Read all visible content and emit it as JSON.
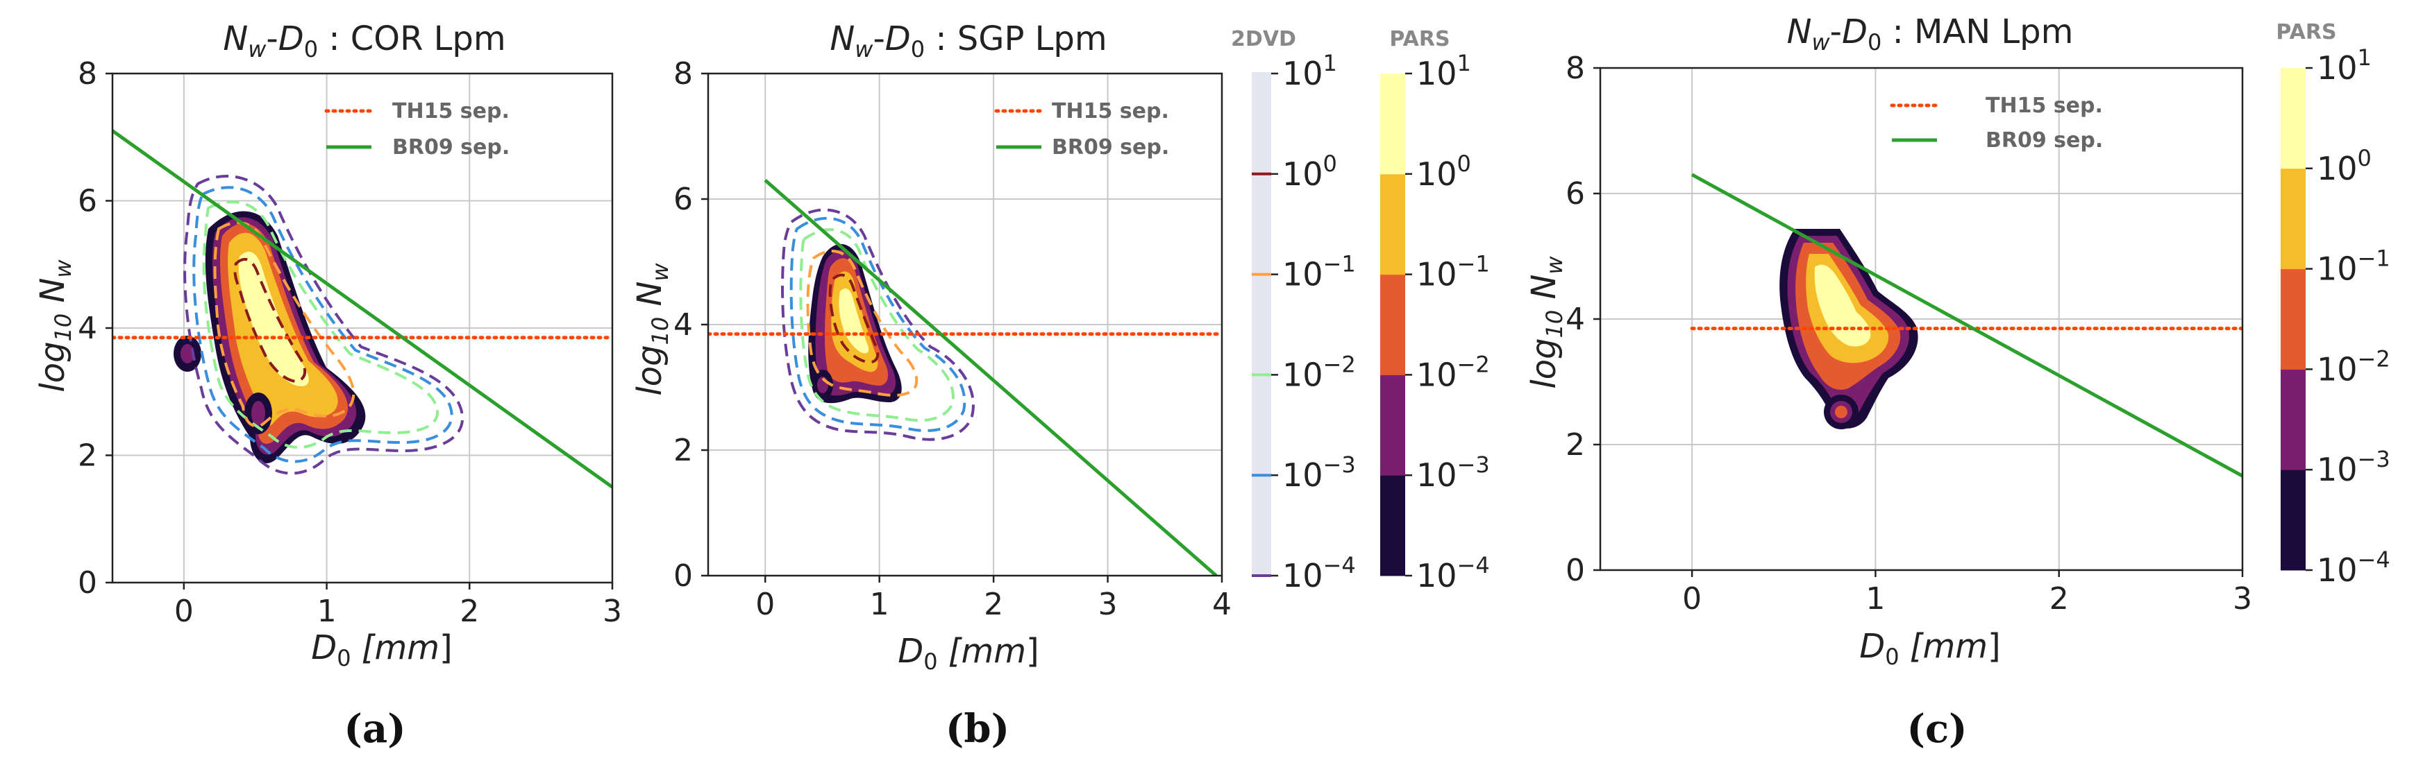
{
  "chart_data": [
    {
      "type": "contour",
      "panel_label": "(a)",
      "title_math": "Nw-D0",
      "title_suffix": "COR Lpm",
      "xlabel": "D0 [mm]",
      "ylabel": "log10 Nw",
      "xlim": [
        -0.5,
        3
      ],
      "ylim": [
        0,
        8
      ],
      "xticks": [
        0,
        1,
        2,
        3
      ],
      "yticks": [
        0,
        2,
        4,
        6,
        8
      ],
      "grid": true,
      "legend_position": "top-right",
      "lines": [
        {
          "name": "TH15 sep.",
          "color": "#ff4500",
          "style": "dotted",
          "x": [
            -0.5,
            3
          ],
          "y": [
            3.85,
            3.85
          ]
        },
        {
          "name": "BR09 sep.",
          "color": "#2ca02c",
          "style": "solid",
          "x": [
            -0.5,
            3
          ],
          "y": [
            7.1,
            1.5
          ]
        }
      ],
      "pars_contours": true,
      "dvd_contours": true
    },
    {
      "type": "contour",
      "panel_label": "(b)",
      "title_math": "Nw-D0",
      "title_suffix": "SGP Lpm",
      "xlabel": "D0 [mm]",
      "ylabel": "log10 Nw",
      "xlim": [
        -0.5,
        4
      ],
      "ylim": [
        0,
        8
      ],
      "xticks": [
        0,
        1,
        2,
        3,
        4
      ],
      "yticks": [
        0,
        2,
        4,
        6,
        8
      ],
      "grid": true,
      "legend_position": "top-right",
      "lines": [
        {
          "name": "TH15 sep.",
          "color": "#ff4500",
          "style": "dotted",
          "x": [
            -0.5,
            4
          ],
          "y": [
            3.85,
            3.85
          ]
        },
        {
          "name": "BR09 sep.",
          "color": "#2ca02c",
          "style": "solid",
          "x": [
            0,
            3.95
          ],
          "y": [
            6.3,
            0
          ]
        }
      ],
      "pars_contours": true,
      "dvd_contours": true
    },
    {
      "type": "contour",
      "panel_label": "(c)",
      "title_math": "Nw-D0",
      "title_suffix": "MAN Lpm",
      "xlabel": "D0 [mm]",
      "ylabel": "log10 Nw",
      "xlim": [
        -0.5,
        3
      ],
      "ylim": [
        0,
        8
      ],
      "xticks": [
        0,
        1,
        2,
        3
      ],
      "yticks": [
        0,
        2,
        4,
        6,
        8
      ],
      "grid": true,
      "legend_position": "top-right",
      "lines": [
        {
          "name": "TH15 sep.",
          "color": "#ff4500",
          "style": "dotted",
          "x": [
            0,
            3
          ],
          "y": [
            3.85,
            3.85
          ]
        },
        {
          "name": "BR09 sep.",
          "color": "#2ca02c",
          "style": "solid",
          "x": [
            0,
            3
          ],
          "y": [
            6.3,
            1.5
          ]
        }
      ],
      "pars_contours": true,
      "dvd_contours": false
    }
  ],
  "colorbars": {
    "dvd": {
      "title": "2DVD",
      "levels": [
        "10^-4",
        "10^-3",
        "10^-2",
        "10^-1",
        "10^0",
        "10^1"
      ],
      "line_colors": [
        "#6a3d9a",
        "#3a8fdc",
        "#90ee90",
        "#ffa040",
        "#8b1a1a",
        "#e6e6f2"
      ]
    },
    "pars": {
      "title": "PARS",
      "levels": [
        "10^-4",
        "10^-3",
        "10^-2",
        "10^-1",
        "10^0",
        "10^1"
      ],
      "band_colors": [
        "#1a0b3a",
        "#7a1f6e",
        "#e55b30",
        "#f6bd2b",
        "#ffffa8"
      ]
    }
  }
}
